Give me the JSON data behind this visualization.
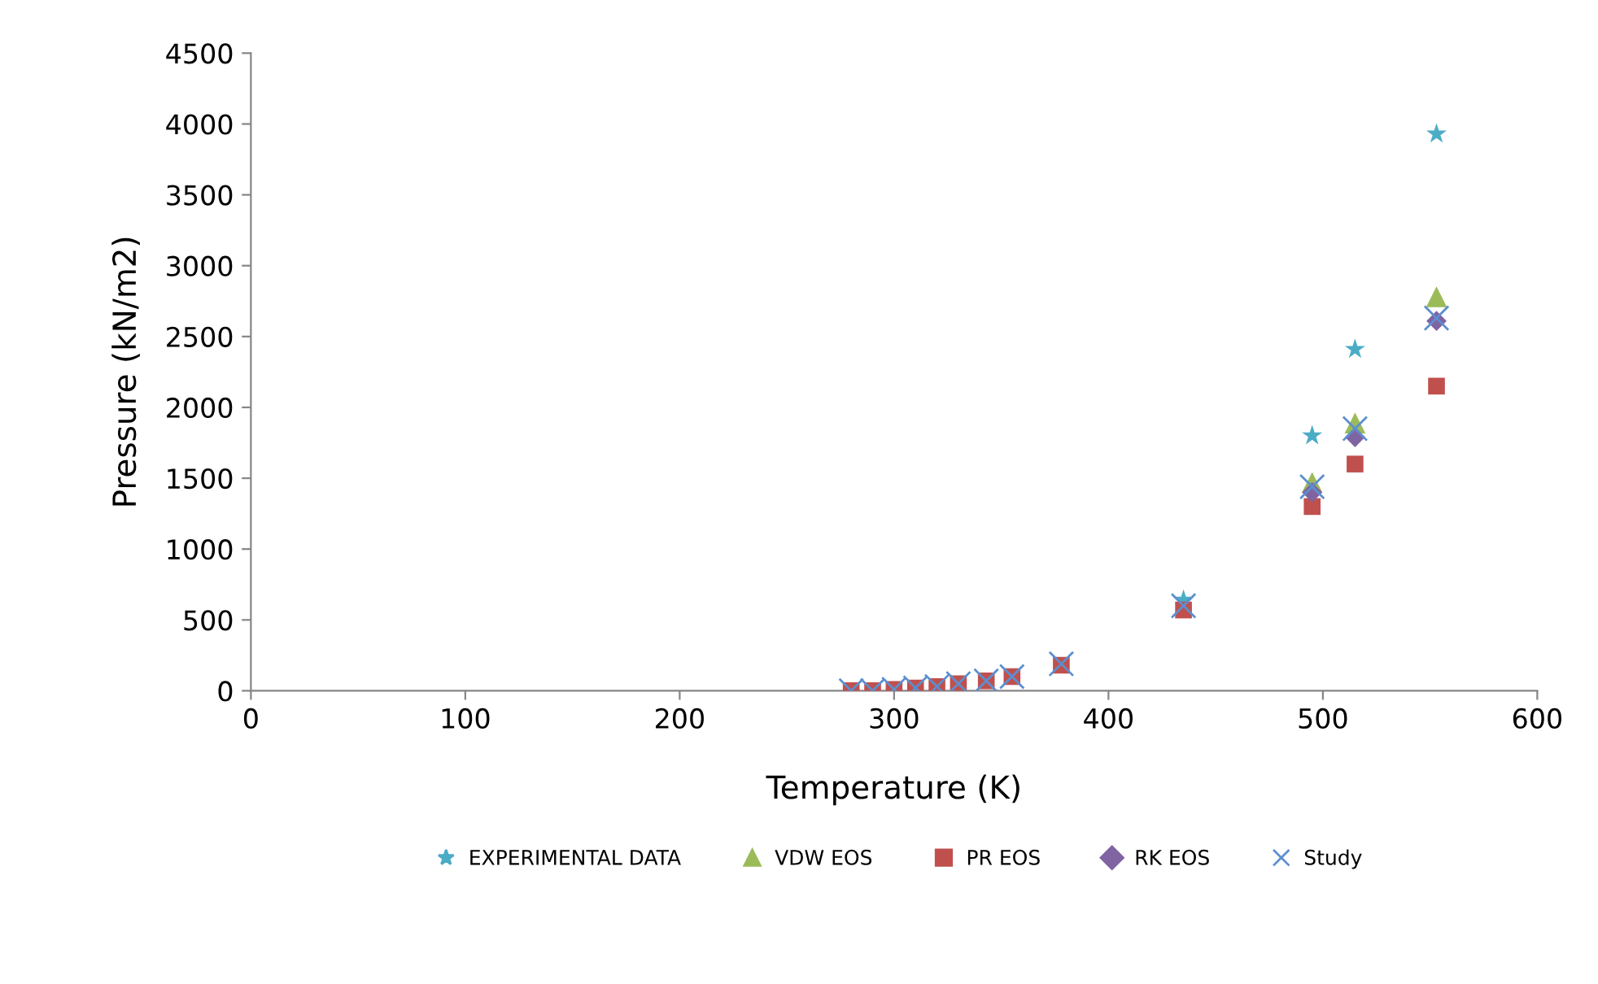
{
  "chart_data": {
    "type": "scatter",
    "xlabel": "Temperature (K)",
    "ylabel": "Pressure (kN/m2)",
    "x": [
      280,
      290,
      300,
      310,
      320,
      330,
      343,
      355,
      378,
      435,
      495,
      515,
      553
    ],
    "series": [
      {
        "name": "EXPERIMENTAL DATA",
        "color": "#4bacc6",
        "marker": "star",
        "values": [
          null,
          null,
          null,
          null,
          null,
          null,
          null,
          null,
          null,
          640,
          1800,
          2410,
          3930
        ]
      },
      {
        "name": "VDW EOS",
        "color": "#9bbb59",
        "marker": "triangle",
        "values": [
          null,
          null,
          null,
          null,
          null,
          null,
          null,
          null,
          null,
          null,
          1470,
          1890,
          2780
        ]
      },
      {
        "name": "PR EOS",
        "color": "#c0504d",
        "marker": "square",
        "values": [
          0,
          0,
          10,
          20,
          30,
          50,
          70,
          100,
          180,
          570,
          1300,
          1600,
          2150
        ]
      },
      {
        "name": "RK EOS",
        "color": "#8064a2",
        "marker": "diamond",
        "values": [
          null,
          null,
          null,
          null,
          null,
          null,
          null,
          null,
          null,
          null,
          1400,
          1790,
          2610
        ]
      },
      {
        "name": "Study",
        "color": "#5b8fd0",
        "marker": "cross",
        "values": [
          0,
          0,
          10,
          20,
          30,
          50,
          70,
          100,
          190,
          600,
          1440,
          1850,
          2630
        ]
      }
    ],
    "xlim": [
      0,
      600
    ],
    "xticks": [
      0,
      100,
      200,
      300,
      400,
      500,
      600
    ],
    "ylim": [
      0,
      4500
    ],
    "yticks": [
      0,
      500,
      1000,
      1500,
      2000,
      2500,
      3000,
      3500,
      4000,
      4500
    ],
    "grid": false,
    "legend": "bottom"
  }
}
